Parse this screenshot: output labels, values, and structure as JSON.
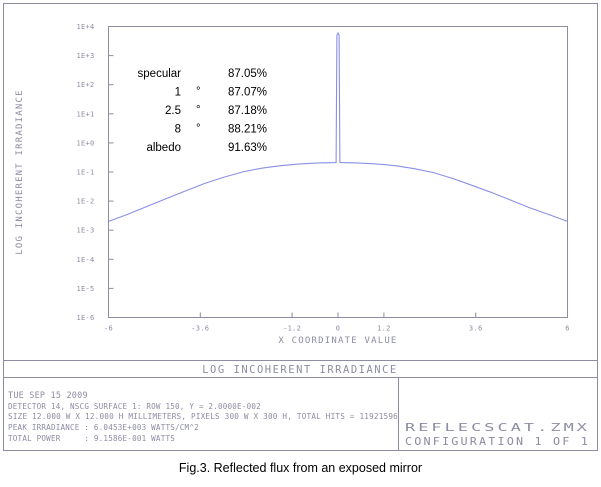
{
  "chart_data": {
    "type": "line",
    "title": "LOG INCOHERENT IRRADIANCE",
    "xlabel": "X COORDINATE VALUE",
    "ylabel": "LOG INCOHERENT IRRADIANCE",
    "xlim": [
      -6,
      6
    ],
    "ylim_log10": [
      -6,
      4
    ],
    "x_ticks": [
      "-6",
      "-3.6",
      "-1.2",
      "0",
      "1.2",
      "3.6",
      "6"
    ],
    "y_ticks": [
      "1E-6",
      "1E-5",
      "1E-4",
      "1E-3",
      "1E-2",
      "1E-1",
      "1E+0",
      "1E+1",
      "1E+2",
      "1E+3",
      "1E+4"
    ],
    "grid": false,
    "series": [
      {
        "color": "#8a8fe6",
        "x": [
          -6,
          -5.5,
          -5,
          -4.5,
          -4,
          -3.5,
          -3,
          -2.5,
          -2,
          -1.5,
          -1,
          -0.5,
          -0.05,
          -0.03,
          0,
          0.03,
          0.05,
          0.5,
          1,
          1.5,
          2,
          2.5,
          3,
          3.5,
          4,
          4.5,
          5,
          5.5,
          6
        ],
        "y": [
          0.002,
          0.0035,
          0.0065,
          0.012,
          0.022,
          0.04,
          0.065,
          0.1,
          0.135,
          0.165,
          0.19,
          0.205,
          0.21,
          5000,
          6000,
          5000,
          0.21,
          0.205,
          0.19,
          0.165,
          0.13,
          0.095,
          0.06,
          0.035,
          0.02,
          0.011,
          0.006,
          0.0035,
          0.002
        ]
      }
    ],
    "annotations": [
      {
        "label": "specular",
        "value": "87.05%"
      },
      {
        "label": "1",
        "unit": "°",
        "value": "87.07%"
      },
      {
        "label": "2.5",
        "unit": "°",
        "value": "87.18%"
      },
      {
        "label": "8",
        "unit": "°",
        "value": "88.21%"
      },
      {
        "label": "albedo",
        "value": "91.63%"
      }
    ]
  },
  "info_block": {
    "date": "TUE SEP 15 2009",
    "line1": "DETECTOR 14, NSCG SURFACE 1: ROW 150, Y = 2.0000E-002",
    "line2": "SIZE 12.000 W X 12.000 H MILLIMETERS, PIXELS 300 W X 300 H, TOTAL HITS = 11921596",
    "line3": "PEAK IRRADIANCE : 6.0453E+003 WATTS/CM^2",
    "line4": "TOTAL POWER     : 9.1586E-001 WATTS"
  },
  "file_block": {
    "filename": "REFLECSCAT.ZMX",
    "config": "CONFIGURATION 1 OF 1"
  },
  "caption": "Fig.3. Reflected flux from an exposed mirror"
}
